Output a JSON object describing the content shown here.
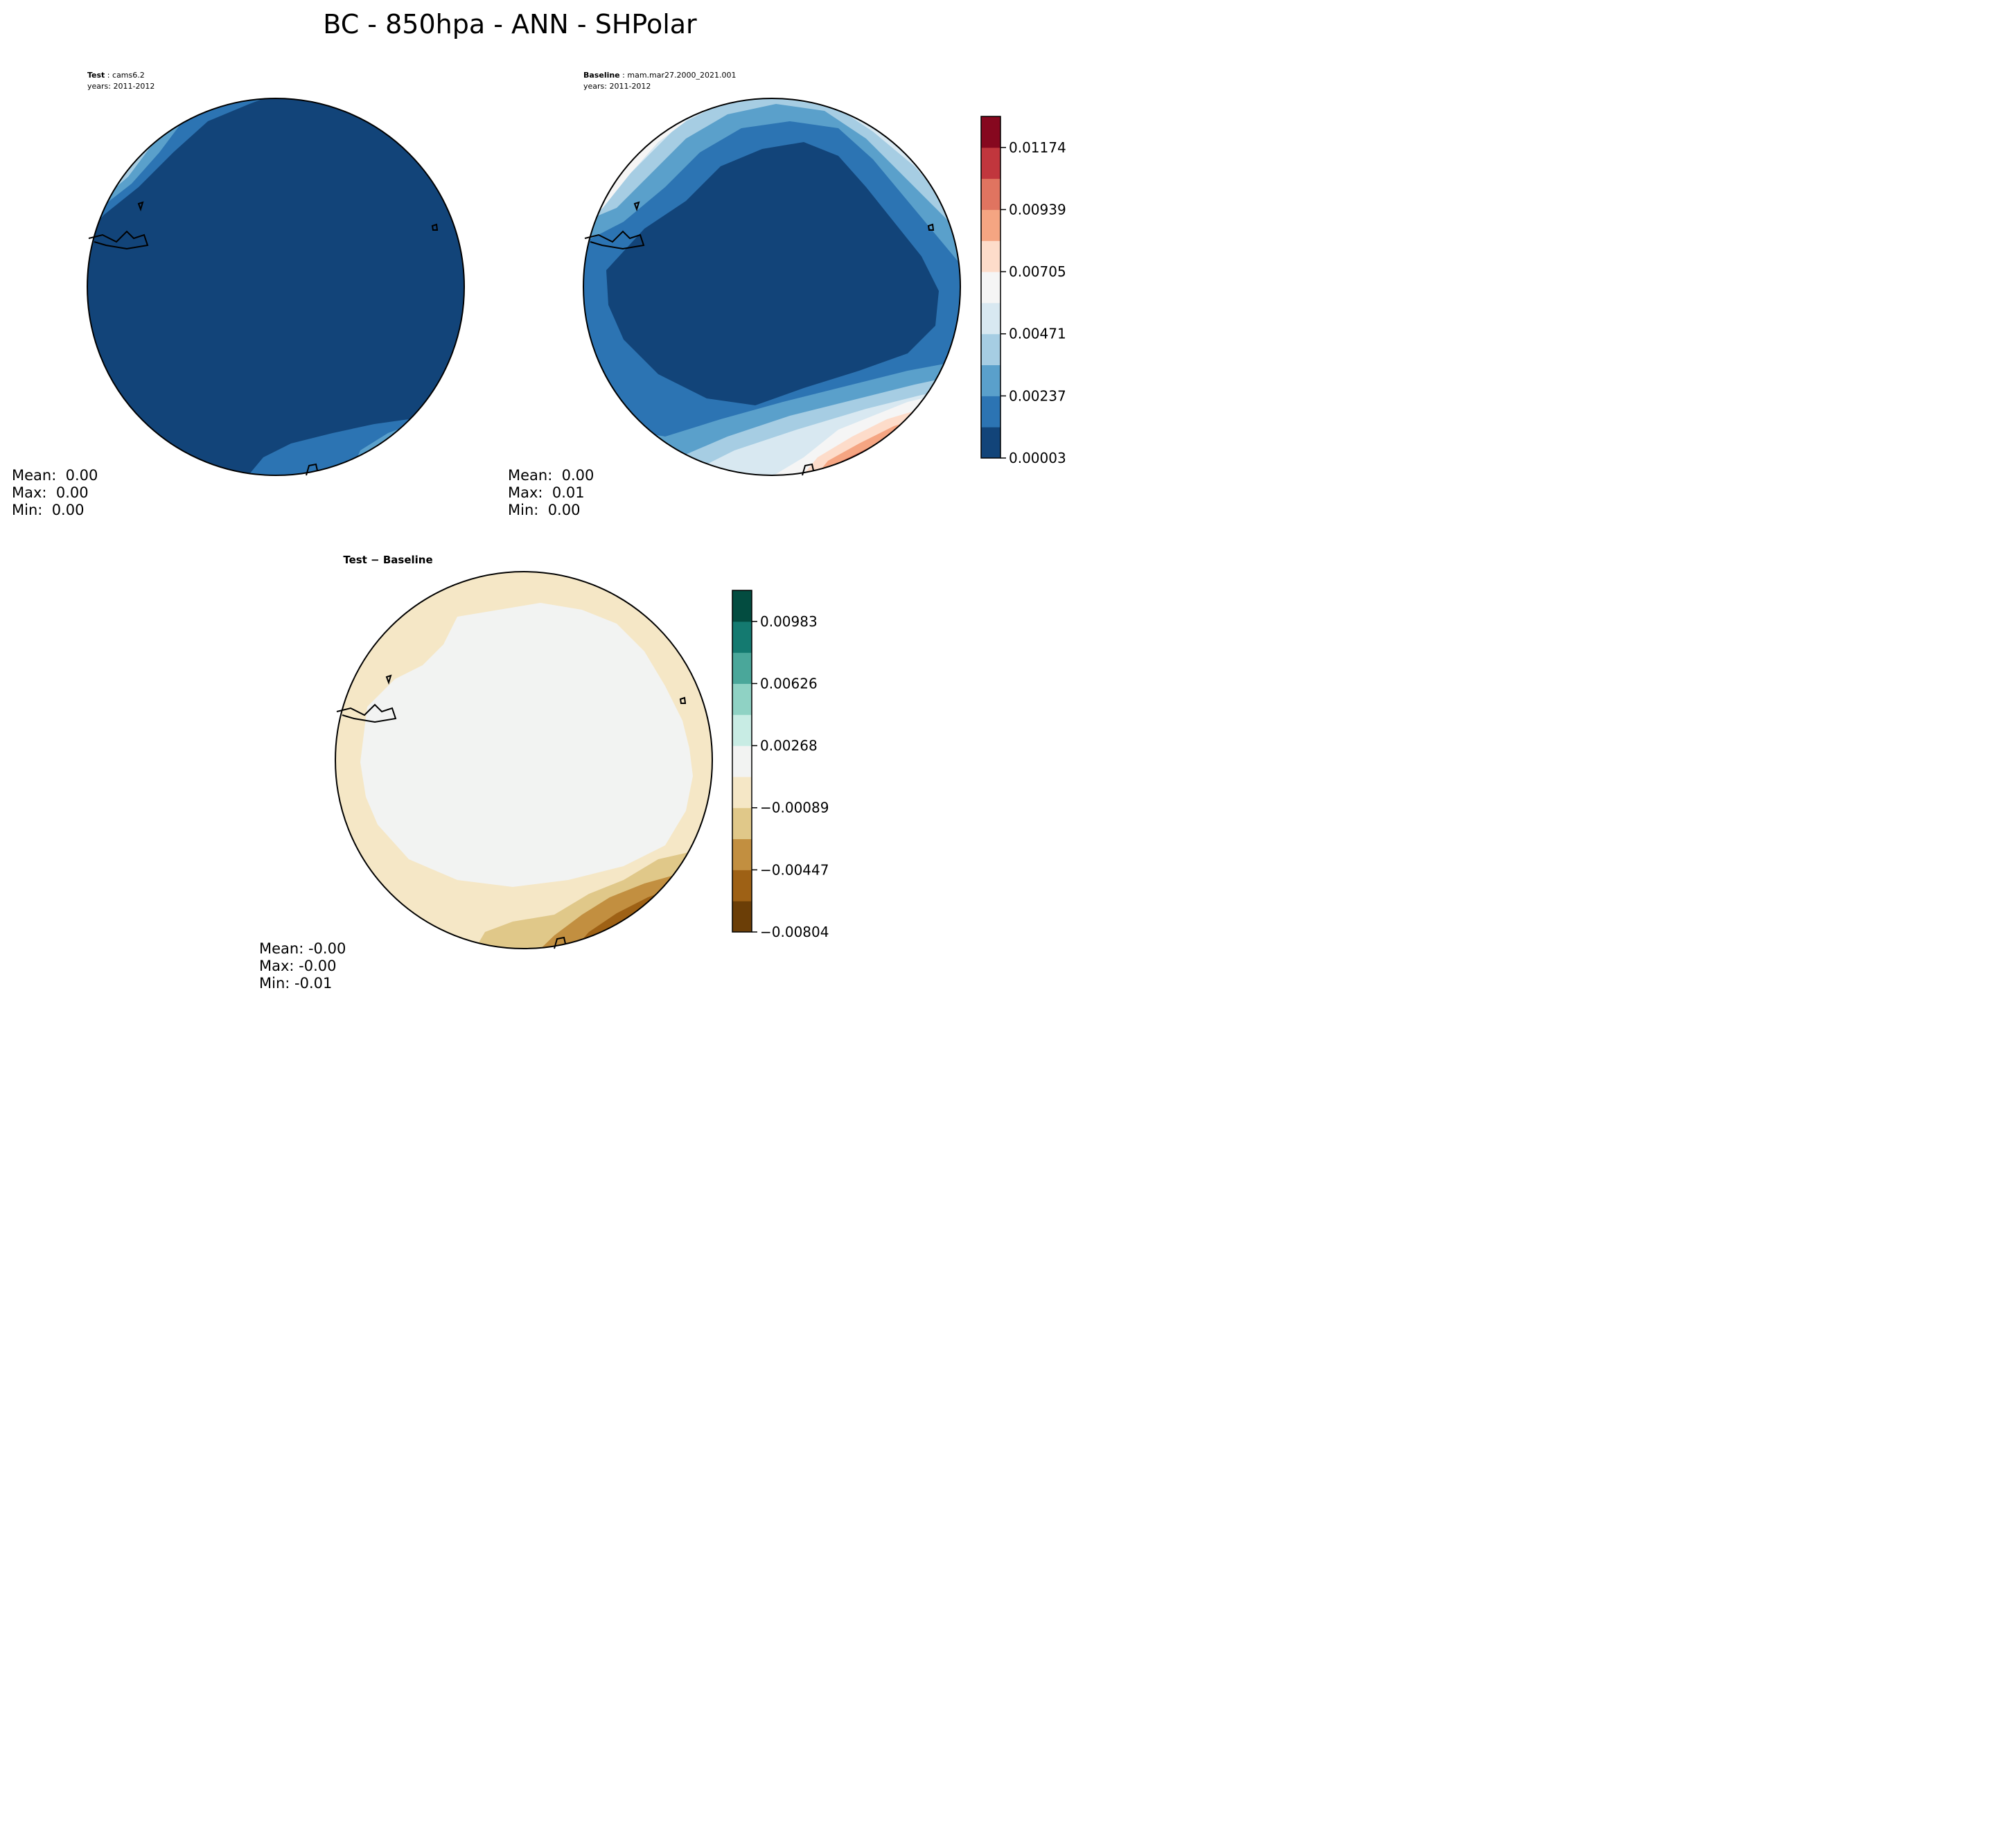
{
  "figure": {
    "title": "BC - 850hpa - ANN - SHPolar"
  },
  "panels": {
    "test": {
      "label_bold": "Test",
      "label_sep": " : ",
      "case_name": "cams6.2",
      "years": "years: 2011-2012",
      "stats": {
        "mean": "Mean:  0.00",
        "max": "Max:  0.00",
        "min": "Min:  0.00"
      }
    },
    "baseline": {
      "label_bold": "Baseline",
      "label_sep": " : ",
      "case_name": "mam.mar27.2000_2021.001",
      "years": "years: 2011-2012",
      "stats": {
        "mean": "Mean:  0.00",
        "max": "Max:  0.01",
        "min": "Min:  0.00"
      }
    },
    "diff": {
      "title": "Test − Baseline",
      "stats": {
        "mean": "Mean: -0.00",
        "max": "Max: -0.00",
        "min": "Min: -0.01"
      }
    }
  },
  "colorbars": {
    "abs": {
      "cmap": "RdBu_r",
      "colors": [
        "#124479",
        "#2c74b3",
        "#5aa0cb",
        "#a6cde3",
        "#d8e8f1",
        "#f5f5f5",
        "#fddcca",
        "#f5a582",
        "#e07460",
        "#c1363d",
        "#86081f"
      ],
      "ticks": [
        "0.00003",
        "0.00237",
        "0.00471",
        "0.00705",
        "0.00939",
        "0.01174"
      ]
    },
    "diff": {
      "cmap": "BrBG",
      "colors": [
        "#6b3e07",
        "#9e6115",
        "#c28f40",
        "#e0c889",
        "#f5e7c6",
        "#f2f3f2",
        "#c8ece4",
        "#8fd2c4",
        "#4aa79a",
        "#147a70",
        "#034c40"
      ],
      "ticks": [
        "−0.00804",
        "−0.00447",
        "−0.00089",
        "0.00268",
        "0.00626",
        "0.00983"
      ]
    }
  }
}
